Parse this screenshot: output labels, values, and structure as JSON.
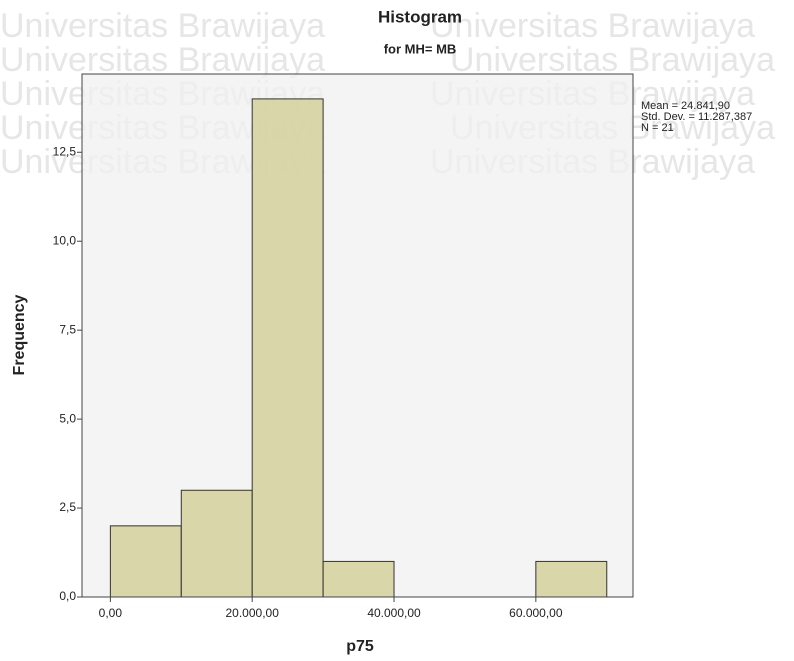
{
  "chart_data": {
    "type": "histogram",
    "title": "Histogram",
    "subtitle": "for MH= MB",
    "xlabel": "p75",
    "ylabel": "Frequency",
    "bins": [
      0,
      10000,
      20000,
      30000,
      40000,
      50000,
      60000,
      70000
    ],
    "values": [
      2,
      3,
      14,
      1,
      0,
      0,
      1
    ],
    "color": "#d4d09c",
    "edge_color": "#333333",
    "background": "#f0f0f0",
    "xlim": [
      -4000,
      73700
    ],
    "ylim": [
      0,
      14.7
    ],
    "xticks": [
      {
        "value": 0,
        "label": "0,00"
      },
      {
        "value": 20000,
        "label": "20.000,00"
      },
      {
        "value": 40000,
        "label": "40.000,00"
      },
      {
        "value": 60000,
        "label": "60.000,00"
      }
    ],
    "yticks": [
      {
        "value": 0,
        "label": "0,0"
      },
      {
        "value": 2.5,
        "label": "2,5"
      },
      {
        "value": 5,
        "label": "5,0"
      },
      {
        "value": 7.5,
        "label": "7,5"
      },
      {
        "value": 10,
        "label": "10,0"
      },
      {
        "value": 12.5,
        "label": "12,5"
      }
    ],
    "grid": false,
    "stats": [
      "Mean = 24.841,90",
      "Std. Dev. = 11.287,387",
      "N = 21"
    ],
    "watermark": "Universitas Brawijaya"
  }
}
